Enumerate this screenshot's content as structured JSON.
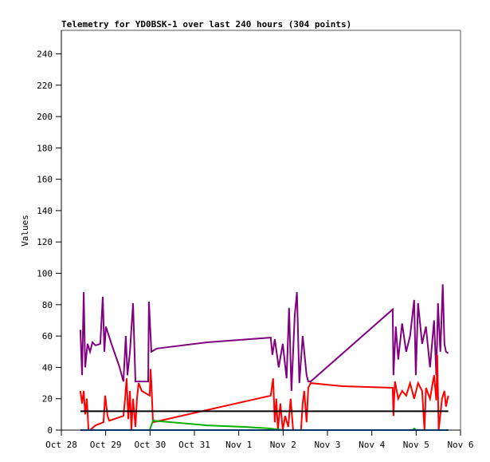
{
  "chart_data": {
    "type": "line",
    "title": "Telemetry for YD0BSK-1 over last 240 hours (304 points)",
    "xlabel": "",
    "ylabel": "Values",
    "x_units": "hours since Oct 28 00:00",
    "xlim": [
      0,
      216
    ],
    "ylim": [
      0,
      255
    ],
    "grid": false,
    "x_ticks": [
      {
        "value": 0,
        "label": "Oct 28"
      },
      {
        "value": 24,
        "label": "Oct 29"
      },
      {
        "value": 48,
        "label": "Oct 30"
      },
      {
        "value": 72,
        "label": "Oct 31"
      },
      {
        "value": 96,
        "label": "Nov 1"
      },
      {
        "value": 120,
        "label": "Nov 2"
      },
      {
        "value": 144,
        "label": "Nov 3"
      },
      {
        "value": 168,
        "label": "Nov 4"
      },
      {
        "value": 192,
        "label": "Nov 5"
      },
      {
        "value": 216,
        "label": "Nov 6"
      }
    ],
    "y_ticks": [
      0,
      20,
      40,
      60,
      80,
      100,
      120,
      140,
      160,
      180,
      200,
      220,
      240
    ],
    "series": [
      {
        "name": "purple",
        "color": "#800080",
        "points": [
          [
            10.3,
            64
          ],
          [
            11.2,
            35
          ],
          [
            12.1,
            88
          ],
          [
            12.9,
            40
          ],
          [
            14.2,
            55
          ],
          [
            15.5,
            50
          ],
          [
            16.8,
            56
          ],
          [
            18.5,
            54
          ],
          [
            21.1,
            55
          ],
          [
            22.4,
            85
          ],
          [
            23.3,
            50
          ],
          [
            24.1,
            66
          ],
          [
            27.1,
            55
          ],
          [
            31.5,
            40
          ],
          [
            33.6,
            31
          ],
          [
            34.9,
            60
          ],
          [
            35.8,
            35
          ],
          [
            37.1,
            50
          ],
          [
            38.8,
            81
          ],
          [
            40.1,
            31
          ],
          [
            47.0,
            31
          ],
          [
            47.4,
            82
          ],
          [
            48.7,
            50
          ],
          [
            51.7,
            52
          ],
          [
            78.9,
            56
          ],
          [
            113.3,
            59
          ],
          [
            114.2,
            48
          ],
          [
            115.5,
            58
          ],
          [
            117.6,
            40
          ],
          [
            119.8,
            55
          ],
          [
            121.9,
            33
          ],
          [
            123.2,
            78
          ],
          [
            124.5,
            25
          ],
          [
            126.3,
            73
          ],
          [
            127.5,
            88
          ],
          [
            128.8,
            30
          ],
          [
            130.6,
            60
          ],
          [
            132.7,
            35
          ],
          [
            133.6,
            31
          ],
          [
            134.9,
            31
          ],
          [
            179.3,
            77
          ],
          [
            179.7,
            35
          ],
          [
            181.0,
            66
          ],
          [
            182.3,
            45
          ],
          [
            184.4,
            68
          ],
          [
            186.6,
            50
          ],
          [
            188.7,
            60
          ],
          [
            190.9,
            83
          ],
          [
            191.8,
            35
          ],
          [
            193.0,
            81
          ],
          [
            195.2,
            55
          ],
          [
            197.3,
            66
          ],
          [
            199.5,
            40
          ],
          [
            201.7,
            70
          ],
          [
            202.9,
            35
          ],
          [
            203.8,
            81
          ],
          [
            205.1,
            50
          ],
          [
            206.4,
            93
          ],
          [
            207.3,
            55
          ],
          [
            208.1,
            50
          ],
          [
            209.4,
            49
          ]
        ]
      },
      {
        "name": "red",
        "color": "#ff0000",
        "points": [
          [
            10.3,
            25
          ],
          [
            11.2,
            17
          ],
          [
            12.1,
            25
          ],
          [
            12.9,
            10
          ],
          [
            13.8,
            20
          ],
          [
            14.7,
            0
          ],
          [
            15.5,
            0
          ],
          [
            18.5,
            3
          ],
          [
            22.8,
            5
          ],
          [
            23.7,
            22
          ],
          [
            25.0,
            9
          ],
          [
            25.9,
            6
          ],
          [
            33.6,
            9
          ],
          [
            34.5,
            20
          ],
          [
            35.3,
            33
          ],
          [
            36.2,
            7
          ],
          [
            37.1,
            25
          ],
          [
            37.9,
            0
          ],
          [
            38.8,
            20
          ],
          [
            40.1,
            2
          ],
          [
            40.9,
            20
          ],
          [
            41.8,
            30
          ],
          [
            43.5,
            25
          ],
          [
            47.8,
            22
          ],
          [
            48.3,
            39
          ],
          [
            48.7,
            30
          ],
          [
            49.6,
            5
          ],
          [
            113.3,
            22
          ],
          [
            114.6,
            33
          ],
          [
            115.5,
            5
          ],
          [
            116.3,
            20
          ],
          [
            117.2,
            0
          ],
          [
            118.5,
            17
          ],
          [
            119.8,
            0
          ],
          [
            121.1,
            9
          ],
          [
            122.8,
            2
          ],
          [
            124.1,
            20
          ],
          [
            125.4,
            0
          ],
          [
            129.7,
            0
          ],
          [
            130.6,
            17
          ],
          [
            131.4,
            25
          ],
          [
            132.7,
            5
          ],
          [
            133.6,
            27
          ],
          [
            134.9,
            30
          ],
          [
            152.1,
            28
          ],
          [
            179.3,
            27
          ],
          [
            179.7,
            9
          ],
          [
            180.5,
            31
          ],
          [
            182.3,
            20
          ],
          [
            184.4,
            25
          ],
          [
            186.6,
            22
          ],
          [
            188.7,
            30
          ],
          [
            190.9,
            20
          ],
          [
            193.0,
            30
          ],
          [
            195.2,
            25
          ],
          [
            196.5,
            0
          ],
          [
            197.3,
            27
          ],
          [
            199.5,
            20
          ],
          [
            201.7,
            35
          ],
          [
            202.9,
            19
          ],
          [
            203.4,
            48
          ],
          [
            204.2,
            0
          ],
          [
            206.0,
            20
          ],
          [
            207.3,
            25
          ],
          [
            208.1,
            15
          ],
          [
            209.4,
            22
          ]
        ]
      },
      {
        "name": "black",
        "color": "#000000",
        "points": [
          [
            10.3,
            12
          ],
          [
            209.4,
            12
          ]
        ]
      },
      {
        "name": "green",
        "color": "#00b000",
        "points": [
          [
            10.3,
            0
          ],
          [
            47.8,
            0
          ],
          [
            49.6,
            6
          ],
          [
            60,
            5
          ],
          [
            78.9,
            3
          ],
          [
            100,
            2
          ],
          [
            113,
            1
          ],
          [
            120,
            0
          ],
          [
            190,
            0
          ],
          [
            191,
            1
          ],
          [
            192,
            0
          ],
          [
            209.4,
            0
          ]
        ]
      },
      {
        "name": "blue",
        "color": "#0066cc",
        "points": [
          [
            10.3,
            0
          ],
          [
            209.4,
            0
          ]
        ]
      }
    ]
  }
}
